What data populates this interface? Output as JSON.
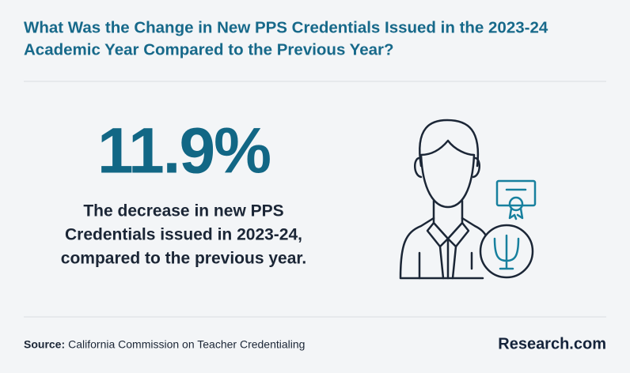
{
  "header": {
    "title": [
      "What Was the Change in New PPS Credentials Issued in the 2023-24",
      "Academic Year Compared to the Previous Year?"
    ]
  },
  "stat": {
    "value": "11.9%",
    "description": [
      "The decrease in new PPS",
      "Credentials issued in 2023-24,",
      "compared to the previous year."
    ]
  },
  "footer": {
    "source_label": "Source:",
    "source": "California Commission on Teacher Credentialing",
    "brand": "Research.com"
  }
}
